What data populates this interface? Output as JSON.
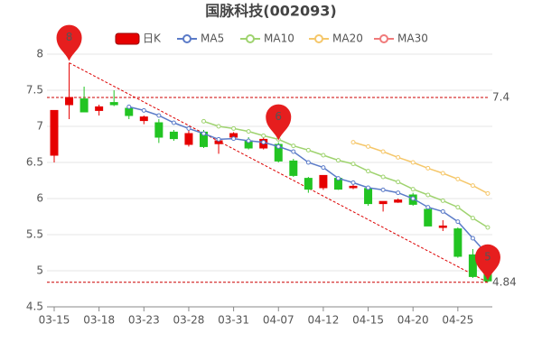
{
  "chart_data": {
    "type": "candlestick",
    "title": "国脉科技(002093)",
    "categories": [
      "03-15",
      null,
      null,
      "03-18",
      null,
      null,
      "03-23",
      null,
      null,
      "03-28",
      null,
      null,
      "03-31",
      null,
      null,
      "04-07",
      null,
      null,
      "04-12",
      null,
      null,
      "04-15",
      null,
      null,
      "04-20",
      null,
      null,
      "04-25",
      null,
      null
    ],
    "candle_name": "日K",
    "up_color": "#e60000",
    "down_color": "#22c422",
    "open": [
      6.6,
      7.3,
      7.38,
      7.22,
      7.33,
      7.25,
      7.08,
      7.05,
      6.92,
      6.75,
      6.92,
      6.76,
      6.85,
      6.8,
      6.7,
      6.75,
      6.52,
      6.28,
      6.15,
      6.28,
      6.15,
      6.14,
      5.93,
      5.95,
      6.05,
      5.85,
      5.6,
      5.58,
      5.22,
      4.98
    ],
    "high": [
      7.22,
      7.88,
      7.55,
      7.3,
      7.5,
      7.28,
      7.15,
      7.1,
      6.95,
      6.95,
      6.95,
      6.82,
      6.92,
      6.85,
      6.85,
      6.78,
      6.55,
      6.3,
      6.32,
      6.3,
      6.22,
      6.15,
      5.96,
      6.0,
      6.08,
      5.86,
      5.7,
      5.6,
      5.3,
      5.0
    ],
    "low": [
      6.5,
      7.1,
      7.2,
      7.15,
      7.28,
      7.1,
      7.03,
      6.77,
      6.8,
      6.72,
      6.7,
      6.62,
      6.8,
      6.68,
      6.68,
      6.5,
      6.3,
      6.08,
      6.12,
      6.12,
      6.13,
      5.9,
      5.82,
      5.94,
      5.9,
      5.62,
      5.55,
      5.18,
      4.9,
      4.84
    ],
    "close": [
      7.22,
      7.4,
      7.2,
      7.27,
      7.3,
      7.15,
      7.13,
      6.85,
      6.83,
      6.9,
      6.72,
      6.8,
      6.9,
      6.7,
      6.82,
      6.52,
      6.32,
      6.13,
      6.32,
      6.13,
      6.17,
      5.93,
      5.96,
      5.98,
      5.92,
      5.62,
      5.62,
      5.2,
      4.92,
      4.86
    ],
    "series": [
      {
        "name": "MA5",
        "color": "#5b7bc8",
        "values": [
          null,
          null,
          null,
          null,
          null,
          7.27,
          7.22,
          7.15,
          7.05,
          6.97,
          6.9,
          6.82,
          6.83,
          6.8,
          6.78,
          6.72,
          6.65,
          6.5,
          6.43,
          6.28,
          6.22,
          6.15,
          6.12,
          6.08,
          6.0,
          5.88,
          5.82,
          5.68,
          5.45,
          5.22
        ]
      },
      {
        "name": "MA10",
        "color": "#9fd36f",
        "values": [
          null,
          null,
          null,
          null,
          null,
          null,
          null,
          null,
          null,
          null,
          7.07,
          7.0,
          6.97,
          6.93,
          6.87,
          6.82,
          6.73,
          6.67,
          6.6,
          6.53,
          6.48,
          6.38,
          6.3,
          6.23,
          6.13,
          6.05,
          5.97,
          5.88,
          5.73,
          5.6
        ]
      },
      {
        "name": "MA20",
        "color": "#f5c76a",
        "values": [
          null,
          null,
          null,
          null,
          null,
          null,
          null,
          null,
          null,
          null,
          null,
          null,
          null,
          null,
          null,
          null,
          null,
          null,
          null,
          null,
          6.78,
          6.72,
          6.65,
          6.57,
          6.5,
          6.42,
          6.35,
          6.27,
          6.18,
          6.07
        ]
      },
      {
        "name": "MA30",
        "color": "#f07a7a",
        "values": [
          null,
          null,
          null,
          null,
          null,
          null,
          null,
          null,
          null,
          null,
          null,
          null,
          null,
          null,
          null,
          null,
          null,
          null,
          null,
          null,
          null,
          null,
          null,
          null,
          null,
          null,
          null,
          null,
          null,
          null
        ]
      }
    ],
    "pins": [
      {
        "label": "8",
        "index": 1,
        "at": "high"
      },
      {
        "label": "6",
        "index": 15,
        "at": "high"
      },
      {
        "label": "5",
        "index": 29,
        "at": "low"
      }
    ],
    "reference_lines": [
      7.4,
      4.84
    ],
    "ylim": [
      4.5,
      8
    ],
    "yticks": [
      4.5,
      5,
      5.5,
      6,
      6.5,
      7,
      7.5,
      8
    ],
    "grid": true
  }
}
